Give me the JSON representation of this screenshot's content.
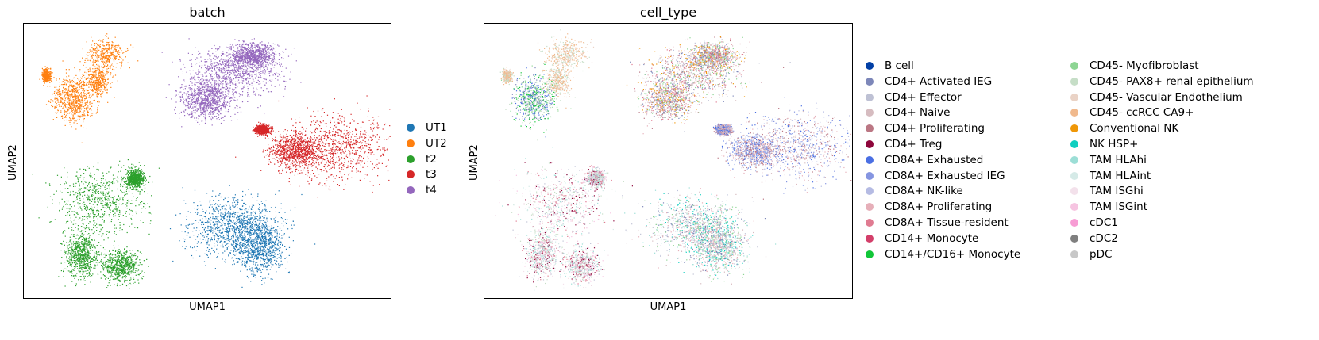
{
  "chart_data": [
    {
      "type": "scatter",
      "title": "batch",
      "xlabel": "UMAP1",
      "ylabel": "UMAP2",
      "grid": false,
      "legend_placement": "right",
      "series": [
        {
          "name": "UT1",
          "color": "#1f77b4"
        },
        {
          "name": "UT2",
          "color": "#ff7f0e"
        },
        {
          "name": "t2",
          "color": "#2ca02c"
        },
        {
          "name": "t3",
          "color": "#d62728"
        },
        {
          "name": "t4",
          "color": "#9467bd"
        }
      ]
    },
    {
      "type": "scatter",
      "title": "cell_type",
      "xlabel": "UMAP1",
      "ylabel": "UMAP2",
      "grid": false,
      "legend_placement": "right",
      "series": [
        {
          "name": "B cell",
          "color": "#023fa5"
        },
        {
          "name": "CD4+ Activated IEG",
          "color": "#7d87b9"
        },
        {
          "name": "CD4+ Effector",
          "color": "#bec1d4"
        },
        {
          "name": "CD4+ Naive",
          "color": "#d6bcc0"
        },
        {
          "name": "CD4+ Proliferating",
          "color": "#bb7784"
        },
        {
          "name": "CD4+ Treg",
          "color": "#8e063b"
        },
        {
          "name": "CD8A+ Exhausted",
          "color": "#4a6fe3"
        },
        {
          "name": "CD8A+ Exhausted IEG",
          "color": "#8595e1"
        },
        {
          "name": "CD8A+ NK-like",
          "color": "#b5bbe3"
        },
        {
          "name": "CD8A+ Proliferating",
          "color": "#e6afb9"
        },
        {
          "name": "CD8A+ Tissue-resident",
          "color": "#e07b91"
        },
        {
          "name": "CD14+ Monocyte",
          "color": "#d33f6a"
        },
        {
          "name": "CD14+/CD16+ Monocyte",
          "color": "#11c638"
        },
        {
          "name": "CD45- Myofibroblast",
          "color": "#8dd593"
        },
        {
          "name": "CD45- PAX8+ renal epithelium",
          "color": "#c6dec7"
        },
        {
          "name": "CD45- Vascular Endothelium",
          "color": "#ead3c6"
        },
        {
          "name": "CD45- ccRCC CA9+",
          "color": "#f0b98d"
        },
        {
          "name": "Conventional NK",
          "color": "#ef9708"
        },
        {
          "name": "NK HSP+",
          "color": "#0fcfc0"
        },
        {
          "name": "TAM HLAhi",
          "color": "#9cded6"
        },
        {
          "name": "TAM HLAint",
          "color": "#d5eae7"
        },
        {
          "name": "TAM ISGhi",
          "color": "#f3e1eb"
        },
        {
          "name": "TAM ISGint",
          "color": "#f6c4e1"
        },
        {
          "name": "cDC1",
          "color": "#f79cd4"
        },
        {
          "name": "cDC2",
          "color": "#7f7f7f"
        },
        {
          "name": "pDC",
          "color": "#c7c7c7"
        }
      ]
    }
  ]
}
